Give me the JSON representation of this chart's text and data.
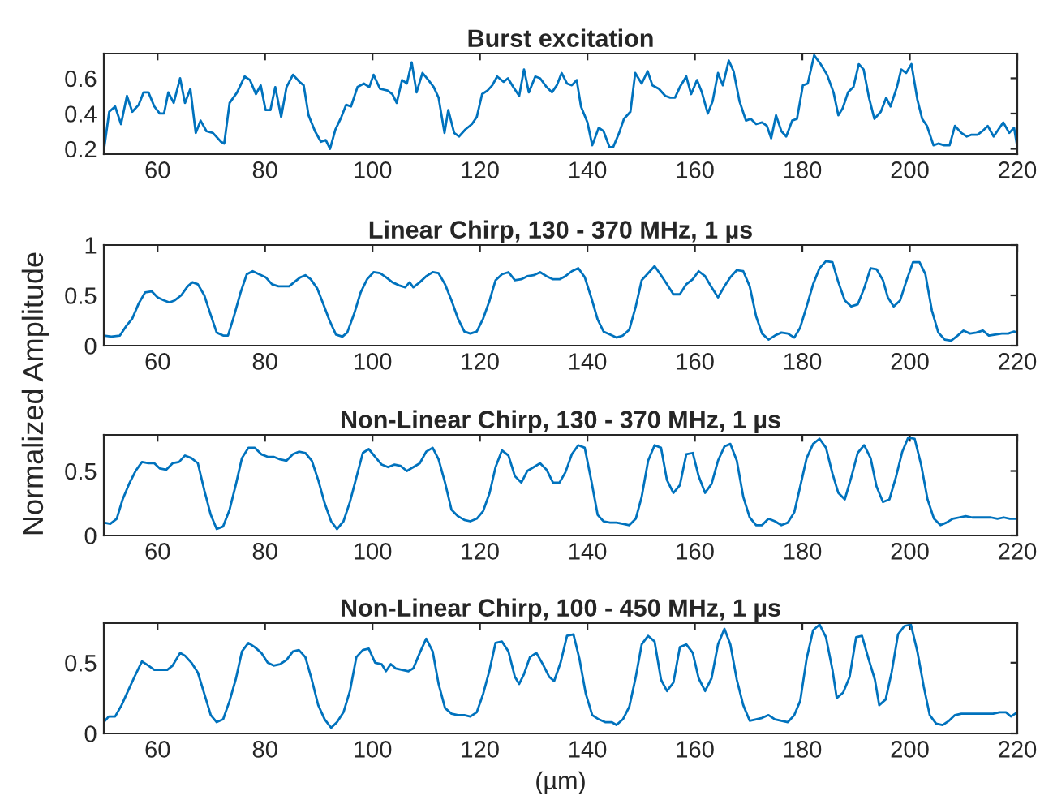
{
  "chart_data": [
    {
      "type": "line",
      "title": "Burst excitation",
      "xlim": [
        50,
        220
      ],
      "xticks": [
        60,
        80,
        100,
        120,
        140,
        160,
        180,
        200,
        220
      ],
      "ylim": [
        0.17,
        0.74
      ],
      "yticks": [
        0.2,
        0.4,
        0.6
      ],
      "series": [
        {
          "color": "#0072bd",
          "x": [
            50,
            51,
            52.1,
            53.2,
            54.3,
            55.3,
            56.5,
            57.4,
            58.3,
            59.4,
            60.4,
            61.2,
            62,
            63,
            64.2,
            65.1,
            66.1,
            67.1,
            68,
            69.1,
            70.3,
            71.8,
            72.4,
            73.4,
            74.8,
            76.2,
            77.2,
            78.3,
            79.2,
            80.1,
            81,
            81.9,
            83,
            84,
            85.2,
            86.4,
            87.2,
            88.1,
            89.3,
            90.4,
            91.3,
            92.1,
            93.1,
            94.2,
            95.1,
            96,
            97.2,
            98.4,
            99.4,
            100.2,
            101.4,
            102.8,
            103.7,
            104.5,
            105.5,
            106.4,
            107.3,
            108.2,
            109.3,
            110.4,
            111.4,
            112.3,
            113.4,
            114.1,
            115.2,
            116.1,
            117.3,
            118.5,
            119.4,
            120.4,
            121.4,
            122.3,
            123.2,
            124.4,
            125.2,
            126.2,
            127.3,
            128.2,
            129.1,
            130.3,
            131.2,
            132.4,
            133.4,
            134.3,
            135.2,
            136.2,
            137.1,
            138,
            138.8,
            140,
            140.9,
            142.1,
            143,
            144.1,
            144.8,
            145.9,
            146.8,
            148,
            148.9,
            150.1,
            151.2,
            152.1,
            153.3,
            154.5,
            155.4,
            156.3,
            157.2,
            158.4,
            159.3,
            160.4,
            161.3,
            162.4,
            163.3,
            164.3,
            165.2,
            166.3,
            167.2,
            168.3,
            169.5,
            170.4,
            171.4,
            172.5,
            173.4,
            174.2,
            175.1,
            176.1,
            177,
            178.1,
            179,
            180.1,
            181,
            182.2,
            183.4,
            184.6,
            185.8,
            186.7,
            187.5,
            188.5,
            189.5,
            190.5,
            191.4,
            192.4,
            193.4,
            194.6,
            195.6,
            196.4,
            197.6,
            198.4,
            199.3,
            200.3,
            201.4,
            202.3,
            203.2,
            204.4,
            205.3,
            206.4,
            207.4,
            208.4,
            209.6,
            210.6,
            211.5,
            212.6,
            213.5,
            214.5,
            215.6,
            216.5,
            217.4,
            218.5,
            219.4,
            220
          ],
          "values": [
            0.19,
            0.41,
            0.44,
            0.34,
            0.5,
            0.41,
            0.45,
            0.52,
            0.52,
            0.44,
            0.4,
            0.4,
            0.52,
            0.46,
            0.6,
            0.46,
            0.54,
            0.29,
            0.36,
            0.3,
            0.29,
            0.24,
            0.23,
            0.46,
            0.52,
            0.61,
            0.59,
            0.51,
            0.56,
            0.42,
            0.42,
            0.55,
            0.38,
            0.55,
            0.62,
            0.58,
            0.56,
            0.39,
            0.3,
            0.24,
            0.25,
            0.2,
            0.31,
            0.38,
            0.45,
            0.44,
            0.55,
            0.57,
            0.55,
            0.62,
            0.54,
            0.53,
            0.51,
            0.46,
            0.59,
            0.57,
            0.69,
            0.52,
            0.63,
            0.59,
            0.55,
            0.49,
            0.29,
            0.42,
            0.29,
            0.27,
            0.31,
            0.34,
            0.38,
            0.51,
            0.53,
            0.56,
            0.61,
            0.58,
            0.6,
            0.55,
            0.5,
            0.65,
            0.52,
            0.61,
            0.6,
            0.55,
            0.52,
            0.56,
            0.63,
            0.57,
            0.56,
            0.59,
            0.44,
            0.35,
            0.22,
            0.32,
            0.3,
            0.21,
            0.21,
            0.29,
            0.37,
            0.41,
            0.63,
            0.57,
            0.64,
            0.56,
            0.54,
            0.5,
            0.49,
            0.49,
            0.55,
            0.61,
            0.51,
            0.59,
            0.52,
            0.4,
            0.47,
            0.63,
            0.56,
            0.7,
            0.64,
            0.47,
            0.36,
            0.37,
            0.34,
            0.35,
            0.33,
            0.26,
            0.39,
            0.3,
            0.27,
            0.36,
            0.37,
            0.56,
            0.57,
            0.73,
            0.68,
            0.62,
            0.52,
            0.39,
            0.43,
            0.52,
            0.55,
            0.68,
            0.65,
            0.49,
            0.37,
            0.41,
            0.49,
            0.44,
            0.55,
            0.65,
            0.63,
            0.68,
            0.48,
            0.37,
            0.33,
            0.22,
            0.23,
            0.22,
            0.22,
            0.33,
            0.29,
            0.27,
            0.28,
            0.28,
            0.3,
            0.33,
            0.27,
            0.31,
            0.35,
            0.29,
            0.32,
            0.21
          ]
        }
      ]
    },
    {
      "type": "line",
      "title": "Linear Chirp, 130 - 370 MHz, 1 µs",
      "ylabel": "Normalized Amplitude",
      "xlim": [
        50,
        220
      ],
      "xticks": [
        60,
        80,
        100,
        120,
        140,
        160,
        180,
        200,
        220
      ],
      "ylim": [
        0,
        1
      ],
      "yticks": [
        0,
        0.5,
        1
      ],
      "series": [
        {
          "color": "#0072bd",
          "x": [
            50,
            51.4,
            53,
            54.1,
            55.3,
            56.5,
            57.7,
            58.9,
            60,
            61.2,
            62.2,
            63.2,
            64.4,
            65.6,
            66.5,
            67.5,
            68.7,
            69.8,
            71,
            72.2,
            73.1,
            74.2,
            75.4,
            76.6,
            77.7,
            78.9,
            80.1,
            81.3,
            82.5,
            83.4,
            84.5,
            85.4,
            86.6,
            87.5,
            88.5,
            89.7,
            90.8,
            92,
            93.2,
            94.4,
            95.3,
            96.6,
            97.8,
            99,
            100.2,
            101.4,
            102.5,
            103.7,
            104.9,
            106.1,
            106.9,
            107.6,
            108.8,
            110,
            111.2,
            112.3,
            113.5,
            114.7,
            115.9,
            117.1,
            118.2,
            119.4,
            120.6,
            121.8,
            122.9,
            124.1,
            125.3,
            126.5,
            127.7,
            128.8,
            130,
            131.2,
            132.4,
            133.6,
            134.8,
            135.9,
            137.1,
            138.3,
            139.5,
            140.7,
            141.9,
            143,
            144.2,
            145.4,
            146.6,
            147.8,
            149,
            150.1,
            151.3,
            152.5,
            153.7,
            154.8,
            156,
            157.2,
            158.4,
            159.6,
            160.7,
            161.9,
            163.1,
            164.3,
            165.5,
            166.6,
            167.8,
            169,
            170.2,
            171.4,
            172.5,
            173.7,
            174.9,
            176.1,
            177.3,
            178.5,
            179.6,
            180.8,
            182,
            183.2,
            184.4,
            185.6,
            186.7,
            187.9,
            189.1,
            190.3,
            191.5,
            192.7,
            193.8,
            195,
            195.9,
            197,
            198.2,
            199.4,
            200.6,
            201.8,
            202.9,
            204.1,
            205.3,
            206.5,
            207.7,
            208.9,
            210,
            211.2,
            212.4,
            213.6,
            214.7,
            215.9,
            217.1,
            218.3,
            219.4,
            220
          ],
          "values": [
            0.1,
            0.09,
            0.1,
            0.19,
            0.27,
            0.42,
            0.53,
            0.54,
            0.48,
            0.45,
            0.43,
            0.45,
            0.5,
            0.59,
            0.63,
            0.61,
            0.5,
            0.32,
            0.13,
            0.1,
            0.1,
            0.29,
            0.52,
            0.71,
            0.74,
            0.71,
            0.68,
            0.61,
            0.59,
            0.59,
            0.59,
            0.63,
            0.68,
            0.7,
            0.66,
            0.57,
            0.42,
            0.25,
            0.11,
            0.09,
            0.13,
            0.32,
            0.53,
            0.66,
            0.73,
            0.72,
            0.68,
            0.63,
            0.6,
            0.58,
            0.63,
            0.58,
            0.63,
            0.69,
            0.73,
            0.72,
            0.61,
            0.45,
            0.27,
            0.14,
            0.12,
            0.14,
            0.27,
            0.45,
            0.65,
            0.71,
            0.73,
            0.65,
            0.66,
            0.69,
            0.7,
            0.73,
            0.69,
            0.66,
            0.66,
            0.69,
            0.74,
            0.77,
            0.68,
            0.48,
            0.26,
            0.14,
            0.11,
            0.08,
            0.1,
            0.16,
            0.39,
            0.65,
            0.72,
            0.79,
            0.7,
            0.61,
            0.51,
            0.51,
            0.61,
            0.66,
            0.74,
            0.69,
            0.58,
            0.48,
            0.59,
            0.68,
            0.75,
            0.74,
            0.59,
            0.29,
            0.12,
            0.06,
            0.1,
            0.13,
            0.12,
            0.08,
            0.18,
            0.39,
            0.61,
            0.77,
            0.84,
            0.83,
            0.63,
            0.45,
            0.39,
            0.41,
            0.57,
            0.77,
            0.76,
            0.65,
            0.48,
            0.39,
            0.45,
            0.65,
            0.83,
            0.83,
            0.71,
            0.35,
            0.13,
            0.06,
            0.05,
            0.1,
            0.15,
            0.12,
            0.13,
            0.15,
            0.1,
            0.11,
            0.12,
            0.12,
            0.14,
            0.13
          ]
        }
      ]
    },
    {
      "type": "line",
      "title": "Non-Linear Chirp, 130 - 370 MHz, 1 µs",
      "xlim": [
        50,
        220
      ],
      "xticks": [
        60,
        80,
        100,
        120,
        140,
        160,
        180,
        200,
        220
      ],
      "ylim": [
        0,
        0.78
      ],
      "yticks": [
        0,
        0.5
      ],
      "series": [
        {
          "color": "#0072bd",
          "x": [
            50,
            51.2,
            52.4,
            53.5,
            54.7,
            55.9,
            57.1,
            58.3,
            59.4,
            60.4,
            61.6,
            62.8,
            64,
            65.1,
            66.3,
            67.5,
            68.7,
            69.9,
            71,
            72.2,
            73.4,
            74.6,
            75.7,
            76.9,
            78.1,
            79.3,
            80.5,
            81.6,
            82.8,
            84,
            85.2,
            86.3,
            87.5,
            88.7,
            89.9,
            91.1,
            92.3,
            93.4,
            94.6,
            95.8,
            97,
            98.2,
            99.3,
            100.5,
            101.7,
            102.9,
            104.1,
            105.2,
            106.4,
            107.6,
            108.8,
            110,
            111.2,
            112.3,
            113.5,
            114.7,
            115.9,
            117.1,
            118.2,
            119.4,
            120.6,
            121.8,
            122.9,
            124.1,
            125.3,
            126.5,
            127.7,
            128.8,
            130,
            131.2,
            132.4,
            133.6,
            134.8,
            135.9,
            137.1,
            138.3,
            139.5,
            140.7,
            141.9,
            143,
            144.2,
            145.4,
            146.6,
            147.8,
            149,
            150.1,
            151.3,
            152.5,
            153.7,
            154.8,
            156,
            157.2,
            158.4,
            159.6,
            160.7,
            161.9,
            163.1,
            164.3,
            165.5,
            166.6,
            167.8,
            169,
            170.2,
            171.4,
            172.5,
            173.7,
            174.9,
            176.1,
            177.3,
            178.5,
            179.6,
            180.8,
            182,
            183.2,
            184.4,
            185.6,
            186.7,
            187.9,
            189.1,
            190.3,
            191.5,
            192.7,
            193.8,
            195,
            196.2,
            197.4,
            198.6,
            199.7,
            200.9,
            202.1,
            203.3,
            204.5,
            205.7,
            206.8,
            208,
            209.2,
            210.4,
            211.6,
            212.8,
            213.9,
            215.1,
            216.3,
            217.5,
            218.6,
            220
          ],
          "values": [
            0.1,
            0.09,
            0.13,
            0.28,
            0.4,
            0.5,
            0.57,
            0.56,
            0.56,
            0.52,
            0.51,
            0.56,
            0.57,
            0.62,
            0.6,
            0.56,
            0.35,
            0.16,
            0.05,
            0.07,
            0.2,
            0.4,
            0.6,
            0.68,
            0.68,
            0.63,
            0.61,
            0.61,
            0.59,
            0.58,
            0.63,
            0.65,
            0.64,
            0.58,
            0.43,
            0.25,
            0.11,
            0.05,
            0.11,
            0.26,
            0.45,
            0.64,
            0.67,
            0.61,
            0.55,
            0.53,
            0.55,
            0.54,
            0.5,
            0.53,
            0.56,
            0.65,
            0.68,
            0.59,
            0.41,
            0.2,
            0.15,
            0.12,
            0.11,
            0.13,
            0.19,
            0.33,
            0.53,
            0.66,
            0.62,
            0.46,
            0.41,
            0.5,
            0.53,
            0.56,
            0.51,
            0.41,
            0.41,
            0.49,
            0.63,
            0.7,
            0.68,
            0.43,
            0.16,
            0.11,
            0.1,
            0.1,
            0.09,
            0.08,
            0.13,
            0.3,
            0.58,
            0.7,
            0.68,
            0.43,
            0.33,
            0.39,
            0.63,
            0.64,
            0.46,
            0.33,
            0.4,
            0.58,
            0.69,
            0.71,
            0.58,
            0.3,
            0.14,
            0.08,
            0.08,
            0.13,
            0.11,
            0.08,
            0.1,
            0.18,
            0.38,
            0.6,
            0.71,
            0.75,
            0.68,
            0.48,
            0.33,
            0.28,
            0.45,
            0.64,
            0.7,
            0.6,
            0.38,
            0.26,
            0.28,
            0.45,
            0.65,
            0.76,
            0.75,
            0.55,
            0.28,
            0.13,
            0.08,
            0.1,
            0.13,
            0.14,
            0.15,
            0.14,
            0.14,
            0.14,
            0.14,
            0.13,
            0.14,
            0.13,
            0.13
          ]
        }
      ]
    },
    {
      "type": "line",
      "title": "Non-Linear Chirp, 100 - 450 MHz, 1 µs",
      "xlabel": "(µm)",
      "xlim": [
        50,
        220
      ],
      "xticks": [
        60,
        80,
        100,
        120,
        140,
        160,
        180,
        200,
        220
      ],
      "ylim": [
        0,
        0.78
      ],
      "yticks": [
        0,
        0.5
      ],
      "series": [
        {
          "color": "#0072bd",
          "x": [
            50,
            50.9,
            52.1,
            53.3,
            54.5,
            55.7,
            57.1,
            58.3,
            59.4,
            60.6,
            61.8,
            62.8,
            64.2,
            65.1,
            66.3,
            67.5,
            68.7,
            69.9,
            71,
            72.2,
            73.4,
            74.6,
            75.7,
            76.9,
            78.1,
            79.3,
            80.5,
            81.6,
            82.8,
            84,
            85.2,
            86.3,
            87.5,
            88.7,
            89.9,
            91.1,
            92.3,
            93.4,
            94.6,
            95.8,
            97,
            98.2,
            99.3,
            100.5,
            101.7,
            102.5,
            103.4,
            104.3,
            105.5,
            106.7,
            107.6,
            108.8,
            110,
            111.2,
            112.3,
            113.5,
            114.7,
            115.9,
            117.1,
            118.2,
            119.4,
            120.6,
            121.8,
            122.9,
            124.1,
            125.3,
            126.5,
            127.3,
            128.2,
            129.3,
            130.5,
            131.7,
            132.9,
            133.8,
            135,
            136.2,
            137.4,
            138.5,
            139.7,
            140.9,
            142.1,
            143.3,
            144.5,
            145.4,
            146.6,
            147.8,
            149,
            150.1,
            151.3,
            152.5,
            153.7,
            154.8,
            156,
            157.2,
            158.4,
            159.6,
            160.7,
            161.9,
            163.1,
            164.3,
            165.5,
            166.6,
            167.8,
            169,
            170.2,
            171.4,
            172.5,
            173.7,
            174.9,
            176.1,
            177.3,
            178.5,
            179.6,
            180.8,
            182,
            183.2,
            184.4,
            185.6,
            186.4,
            187.6,
            188.8,
            190,
            191.1,
            192.3,
            193.5,
            194.3,
            195.5,
            196.6,
            197.8,
            199,
            200.2,
            201.4,
            202.6,
            203.7,
            204.9,
            206.1,
            207.3,
            208.4,
            209.6,
            210.8,
            212,
            213.2,
            214.4,
            215.5,
            216.7,
            217.9,
            218.8,
            220
          ],
          "values": [
            0.08,
            0.12,
            0.12,
            0.2,
            0.3,
            0.4,
            0.51,
            0.48,
            0.45,
            0.45,
            0.45,
            0.48,
            0.57,
            0.55,
            0.5,
            0.43,
            0.28,
            0.13,
            0.08,
            0.1,
            0.23,
            0.39,
            0.58,
            0.64,
            0.61,
            0.57,
            0.5,
            0.48,
            0.49,
            0.52,
            0.58,
            0.59,
            0.54,
            0.38,
            0.2,
            0.1,
            0.04,
            0.08,
            0.15,
            0.3,
            0.54,
            0.59,
            0.6,
            0.5,
            0.49,
            0.44,
            0.49,
            0.46,
            0.45,
            0.44,
            0.46,
            0.57,
            0.67,
            0.58,
            0.35,
            0.18,
            0.14,
            0.13,
            0.13,
            0.12,
            0.15,
            0.28,
            0.45,
            0.64,
            0.65,
            0.58,
            0.4,
            0.35,
            0.42,
            0.54,
            0.57,
            0.49,
            0.4,
            0.37,
            0.5,
            0.69,
            0.7,
            0.53,
            0.28,
            0.13,
            0.1,
            0.08,
            0.08,
            0.06,
            0.1,
            0.19,
            0.4,
            0.63,
            0.69,
            0.65,
            0.38,
            0.3,
            0.36,
            0.61,
            0.63,
            0.57,
            0.39,
            0.3,
            0.39,
            0.63,
            0.74,
            0.63,
            0.38,
            0.2,
            0.09,
            0.1,
            0.11,
            0.13,
            0.1,
            0.09,
            0.08,
            0.13,
            0.23,
            0.53,
            0.73,
            0.77,
            0.68,
            0.45,
            0.25,
            0.29,
            0.4,
            0.68,
            0.69,
            0.53,
            0.38,
            0.2,
            0.24,
            0.43,
            0.7,
            0.76,
            0.77,
            0.58,
            0.33,
            0.13,
            0.07,
            0.06,
            0.09,
            0.13,
            0.14,
            0.14,
            0.14,
            0.14,
            0.14,
            0.14,
            0.15,
            0.15,
            0.12,
            0.15
          ]
        }
      ]
    }
  ]
}
